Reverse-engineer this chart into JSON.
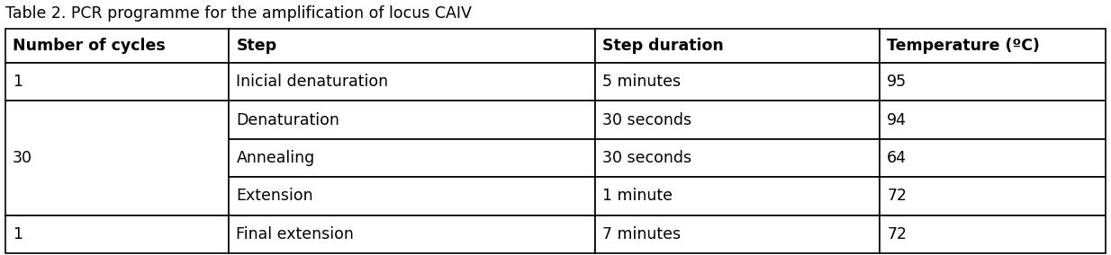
{
  "title": "Table 2. PCR programme for the amplification of locus CAIV",
  "headers": [
    "Number of cycles",
    "Step",
    "Step duration",
    "Temperature (ºC)"
  ],
  "rows": [
    [
      "1",
      "Inicial denaturation",
      "5 minutes",
      "95"
    ],
    [
      "30",
      "Denaturation",
      "30 seconds",
      "94"
    ],
    [
      "",
      "Annealing",
      "30 seconds",
      "64"
    ],
    [
      "",
      "Extension",
      "1 minute",
      "72"
    ],
    [
      "1",
      "Final extension",
      "7 minutes",
      "72"
    ]
  ],
  "background_color": "#ffffff",
  "cell_bg": "#ffffff",
  "border_color": "#000000",
  "text_color": "#000000",
  "title_fontsize": 12.5,
  "header_fontsize": 12.5,
  "cell_fontsize": 12.5,
  "fig_width": 12.34,
  "fig_height": 2.84,
  "dpi": 100
}
